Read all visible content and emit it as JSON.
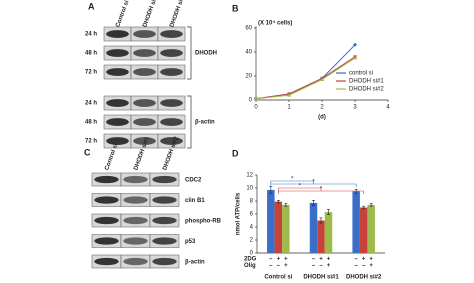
{
  "panels": [
    "A",
    "B",
    "C",
    "D"
  ],
  "blot_a": {
    "lanes": [
      "Control si",
      "DHODH si#1",
      "DHODH si#2"
    ],
    "groups": [
      {
        "label": "DHODH",
        "rows": [
          "24 h",
          "48 h",
          "72 h"
        ]
      },
      {
        "label": "β-actin",
        "rows": [
          "24 h",
          "48 h",
          "72 h"
        ]
      }
    ]
  },
  "blot_c": {
    "lanes": [
      "Control si",
      "DHODH si#1",
      "DHODH si#2"
    ],
    "rows": [
      "CDC2",
      "clin B1",
      "phospho-RB",
      "p53",
      "β-actin"
    ]
  },
  "chart_data": [
    {
      "type": "line",
      "y_label": "(X 10⁴ cells)",
      "x_label": "(d)",
      "x": [
        0,
        1,
        2,
        3
      ],
      "xlim": [
        0,
        4
      ],
      "xticks": [
        0,
        1,
        2,
        3,
        4
      ],
      "ylim": [
        0,
        60
      ],
      "yticks": [
        0,
        20,
        40,
        60
      ],
      "legend": "right",
      "series": [
        {
          "name": "control si",
          "color": "#3a6fc9",
          "values": [
            1,
            5,
            18,
            46
          ]
        },
        {
          "name": "DHODH si#1",
          "color": "#c9423a",
          "values": [
            1,
            5,
            18,
            36
          ]
        },
        {
          "name": "DHODH si#2",
          "color": "#9cbb4a",
          "values": [
            1,
            4,
            17,
            35
          ]
        }
      ]
    },
    {
      "type": "bar",
      "y_label": "nmol ATP/cells",
      "categories": [
        "Control si",
        "DHODH si#1",
        "DHODH si#2"
      ],
      "ylim": [
        0,
        12
      ],
      "yticks": [
        0,
        2,
        4,
        6,
        8,
        10,
        12
      ],
      "series": [
        {
          "color": "#3a6fc9",
          "values": [
            9.7,
            7.7,
            9.5
          ],
          "errors": [
            0.5,
            0.4,
            0.3
          ]
        },
        {
          "color": "#c9423a",
          "values": [
            7.9,
            5.0,
            7.0
          ],
          "errors": [
            0.2,
            0.4,
            0.2
          ]
        },
        {
          "color": "#9cbb4a",
          "values": [
            7.4,
            6.3,
            7.4
          ],
          "errors": [
            0.2,
            0.4,
            0.2
          ]
        }
      ],
      "treatments": [
        {
          "label": "2DG",
          "signs": [
            "–",
            "+",
            "+",
            "–",
            "+",
            "+",
            "–",
            "+",
            "+"
          ]
        },
        {
          "label": "Olig",
          "signs": [
            "–",
            "–",
            "+",
            "–",
            "–",
            "+",
            "–",
            "–",
            "+"
          ]
        }
      ],
      "annotations": [
        "*",
        "*",
        "*",
        "*"
      ]
    }
  ]
}
